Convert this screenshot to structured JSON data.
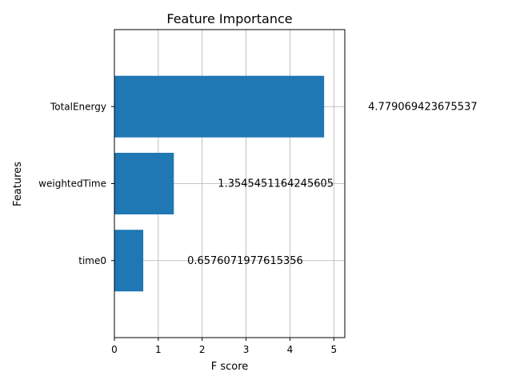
{
  "chart_data": {
    "type": "bar",
    "orientation": "horizontal",
    "title": "Feature Importance",
    "xlabel": "F score",
    "ylabel": "Features",
    "categories": [
      "time0",
      "weightedTime",
      "TotalEnergy"
    ],
    "values": [
      0.6576071977615356,
      1.3545451164245605,
      4.779069423675537
    ],
    "value_labels": [
      "0.6576071977615356",
      "1.3545451164245605",
      "4.779069423675537"
    ],
    "xlim": [
      0,
      5.25
    ],
    "xticks": [
      0,
      1,
      2,
      3,
      4,
      5
    ],
    "xtick_labels": [
      "0",
      "1",
      "2",
      "3",
      "4",
      "5"
    ],
    "grid": true,
    "bar_color": "#1f77b4"
  }
}
